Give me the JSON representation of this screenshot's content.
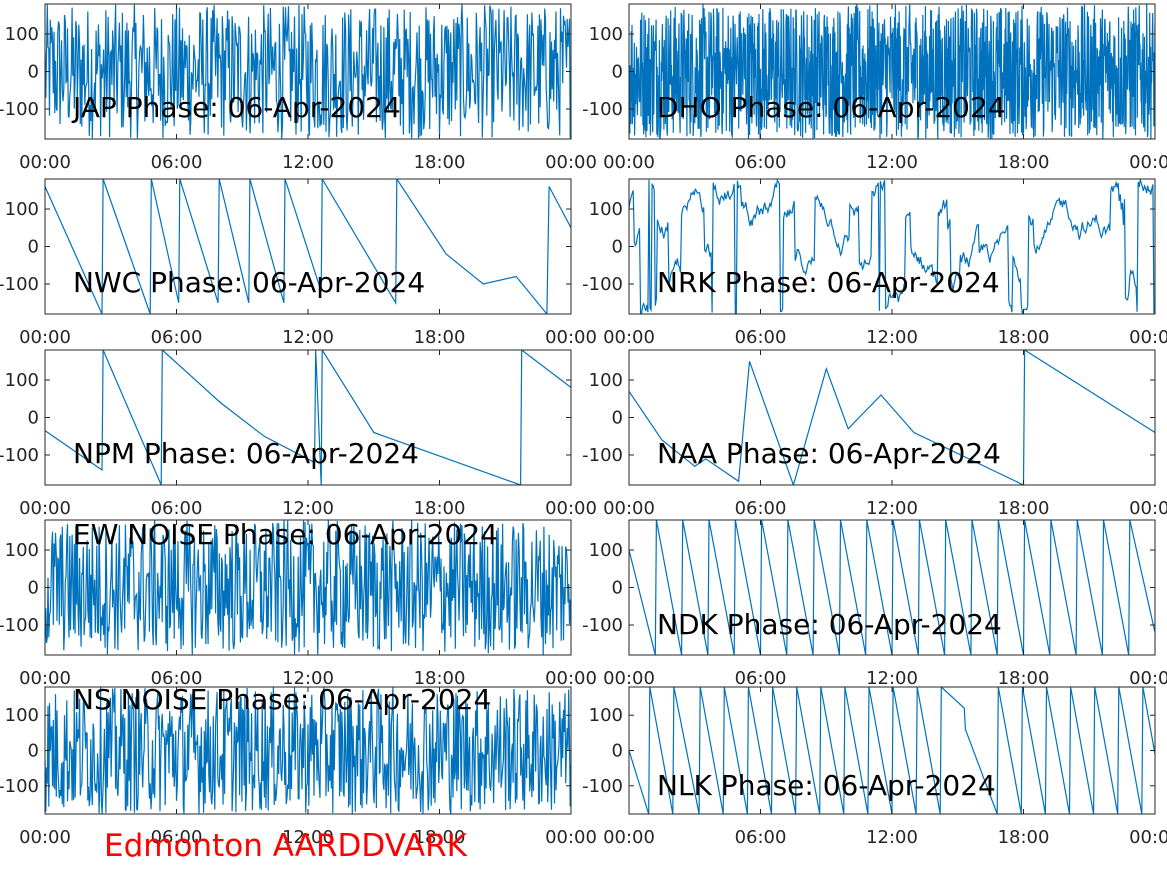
{
  "figure": {
    "footer": "Edmonton AARDDVARK",
    "footer_color": "#ff0000",
    "line_color": "#0072bd"
  },
  "chart_data": [
    {
      "type": "line",
      "title": "JAP Phase: 06-Apr-2024",
      "behavior": "noise",
      "x_ticks": [
        "00:00",
        "06:00",
        "12:00",
        "18:00",
        "00:00"
      ],
      "y_ticks": [
        "100",
        "0",
        "-100"
      ],
      "ylim": [
        -180,
        180
      ],
      "xlim_hours": [
        0,
        24
      ]
    },
    {
      "type": "line",
      "title": "DHO Phase: 06-Apr-2024",
      "behavior": "noise",
      "x_ticks": [
        "00:00",
        "06:00",
        "12:00",
        "18:00",
        "00:00"
      ],
      "y_ticks": [
        "100",
        "0",
        "-100"
      ],
      "ylim": [
        -180,
        180
      ],
      "xlim_hours": [
        0,
        24
      ]
    },
    {
      "type": "line",
      "title": "NWC Phase: 06-Apr-2024",
      "behavior": "sawtooth",
      "x_ticks": [
        "00:00",
        "06:00",
        "12:00",
        "18:00",
        "00:00"
      ],
      "y_ticks": [
        "100",
        "0",
        "-100"
      ],
      "ylim": [
        -180,
        180
      ],
      "xlim_hours": [
        0,
        24
      ],
      "x": [
        0,
        2.6,
        2.65,
        4.8,
        4.85,
        6.1,
        6.15,
        7.9,
        7.95,
        9.3,
        9.35,
        10.9,
        10.95,
        12.6,
        12.65,
        16.0,
        16.05,
        18.3,
        20.0,
        21.5,
        22.9,
        23.0,
        24.0
      ],
      "y": [
        160,
        -180,
        180,
        -180,
        180,
        -150,
        180,
        -150,
        180,
        -150,
        180,
        -150,
        180,
        -120,
        180,
        -150,
        180,
        -20,
        -100,
        -80,
        -180,
        160,
        50
      ]
    },
    {
      "type": "line",
      "title": "NRK Phase: 06-Apr-2024",
      "behavior": "mixed",
      "x_ticks": [
        "00:00",
        "06:00",
        "12:00",
        "18:00",
        "00:00"
      ],
      "y_ticks": [
        "100",
        "0",
        "-100"
      ],
      "ylim": [
        -180,
        180
      ],
      "xlim_hours": [
        0,
        24
      ]
    },
    {
      "type": "line",
      "title": "NPM Phase: 06-Apr-2024",
      "behavior": "sawtooth",
      "x_ticks": [
        "00:00",
        "06:00",
        "12:00",
        "18:00",
        "00:00"
      ],
      "y_ticks": [
        "100",
        "0",
        "-100"
      ],
      "ylim": [
        -180,
        180
      ],
      "xlim_hours": [
        0,
        24
      ],
      "x": [
        0,
        2.6,
        2.65,
        5.3,
        5.35,
        8.0,
        10.0,
        12.3,
        12.35,
        12.6,
        12.65,
        15.0,
        21.7,
        21.75,
        24.0
      ],
      "y": [
        -35,
        -140,
        180,
        -180,
        180,
        40,
        -50,
        -120,
        180,
        -180,
        180,
        -40,
        -180,
        180,
        80
      ]
    },
    {
      "type": "line",
      "title": "NAA Phase: 06-Apr-2024",
      "behavior": "mixed",
      "x_ticks": [
        "00:00",
        "06:00",
        "12:00",
        "18:00",
        "00:00"
      ],
      "y_ticks": [
        "100",
        "0",
        "-100"
      ],
      "ylim": [
        -180,
        180
      ],
      "xlim_hours": [
        0,
        24
      ],
      "x": [
        0,
        1.5,
        3.0,
        3.5,
        5.0,
        5.5,
        7.5,
        9.0,
        10.0,
        11.5,
        13.0,
        18.0,
        18.05,
        24.0
      ],
      "y": [
        70,
        -60,
        -130,
        -110,
        -170,
        150,
        -180,
        130,
        -30,
        60,
        -40,
        -180,
        180,
        -40
      ]
    },
    {
      "type": "line",
      "title": "EW NOISE Phase: 06-Apr-2024",
      "behavior": "noise",
      "x_ticks": [
        "00:00",
        "06:00",
        "12:00",
        "18:00",
        "00:00"
      ],
      "y_ticks": [
        "100",
        "0",
        "-100"
      ],
      "ylim": [
        -180,
        180
      ],
      "xlim_hours": [
        0,
        24
      ]
    },
    {
      "type": "line",
      "title": "NDK Phase: 06-Apr-2024",
      "behavior": "sawtooth",
      "x_ticks": [
        "00:00",
        "06:00",
        "12:00",
        "18:00",
        "00:00"
      ],
      "y_ticks": [
        "100",
        "0",
        "-100"
      ],
      "ylim": [
        -180,
        180
      ],
      "xlim_hours": [
        0,
        24
      ],
      "x": [
        0,
        1.2,
        1.25,
        2.4,
        2.45,
        3.6,
        3.65,
        4.8,
        4.85,
        6.0,
        6.05,
        7.2,
        7.25,
        8.4,
        8.45,
        9.6,
        9.65,
        10.8,
        10.85,
        12.0,
        12.05,
        13.2,
        13.25,
        14.4,
        14.45,
        15.6,
        15.65,
        16.8,
        16.85,
        18.0,
        18.05,
        19.2,
        19.25,
        20.4,
        20.45,
        21.6,
        21.65,
        22.8,
        22.85,
        24.0
      ],
      "y": [
        100,
        -180,
        180,
        -180,
        180,
        -180,
        180,
        -180,
        180,
        -180,
        180,
        -180,
        180,
        -180,
        180,
        -180,
        180,
        -180,
        180,
        -180,
        180,
        -180,
        180,
        -180,
        180,
        -180,
        180,
        -180,
        180,
        -180,
        180,
        -180,
        180,
        -180,
        180,
        -180,
        180,
        -180,
        180,
        -120
      ]
    },
    {
      "type": "line",
      "title": "NS NOISE Phase: 06-Apr-2024",
      "behavior": "noise",
      "x_ticks": [
        "00:00",
        "06:00",
        "12:00",
        "18:00",
        "00:00"
      ],
      "y_ticks": [
        "100",
        "0",
        "-100"
      ],
      "ylim": [
        -180,
        180
      ],
      "xlim_hours": [
        0,
        24
      ]
    },
    {
      "type": "line",
      "title": "NLK Phase: 06-Apr-2024",
      "behavior": "sawtooth",
      "x_ticks": [
        "00:00",
        "06:00",
        "12:00",
        "18:00",
        "00:00"
      ],
      "y_ticks": [
        "100",
        "0",
        "-100"
      ],
      "ylim": [
        -180,
        180
      ],
      "xlim_hours": [
        0,
        24
      ],
      "x": [
        0,
        0.9,
        0.95,
        2.0,
        2.05,
        3.2,
        3.25,
        4.3,
        4.35,
        5.4,
        5.45,
        6.5,
        6.55,
        7.6,
        7.65,
        8.7,
        8.75,
        9.8,
        9.85,
        10.9,
        10.95,
        12.0,
        12.05,
        13.1,
        13.15,
        14.2,
        14.25,
        15.3,
        15.35,
        16.8,
        16.85,
        17.9,
        17.95,
        19.0,
        19.05,
        20.1,
        20.15,
        21.2,
        21.25,
        22.3,
        22.35,
        23.4,
        23.45,
        24.0
      ],
      "y": [
        0,
        -180,
        180,
        -180,
        180,
        -180,
        180,
        -180,
        180,
        -180,
        180,
        -180,
        180,
        -180,
        180,
        -180,
        180,
        -180,
        180,
        -180,
        180,
        -180,
        180,
        -180,
        180,
        -180,
        180,
        120,
        60,
        -180,
        180,
        -180,
        180,
        -180,
        180,
        -180,
        180,
        -180,
        180,
        -180,
        180,
        -180,
        180,
        -10
      ]
    }
  ]
}
